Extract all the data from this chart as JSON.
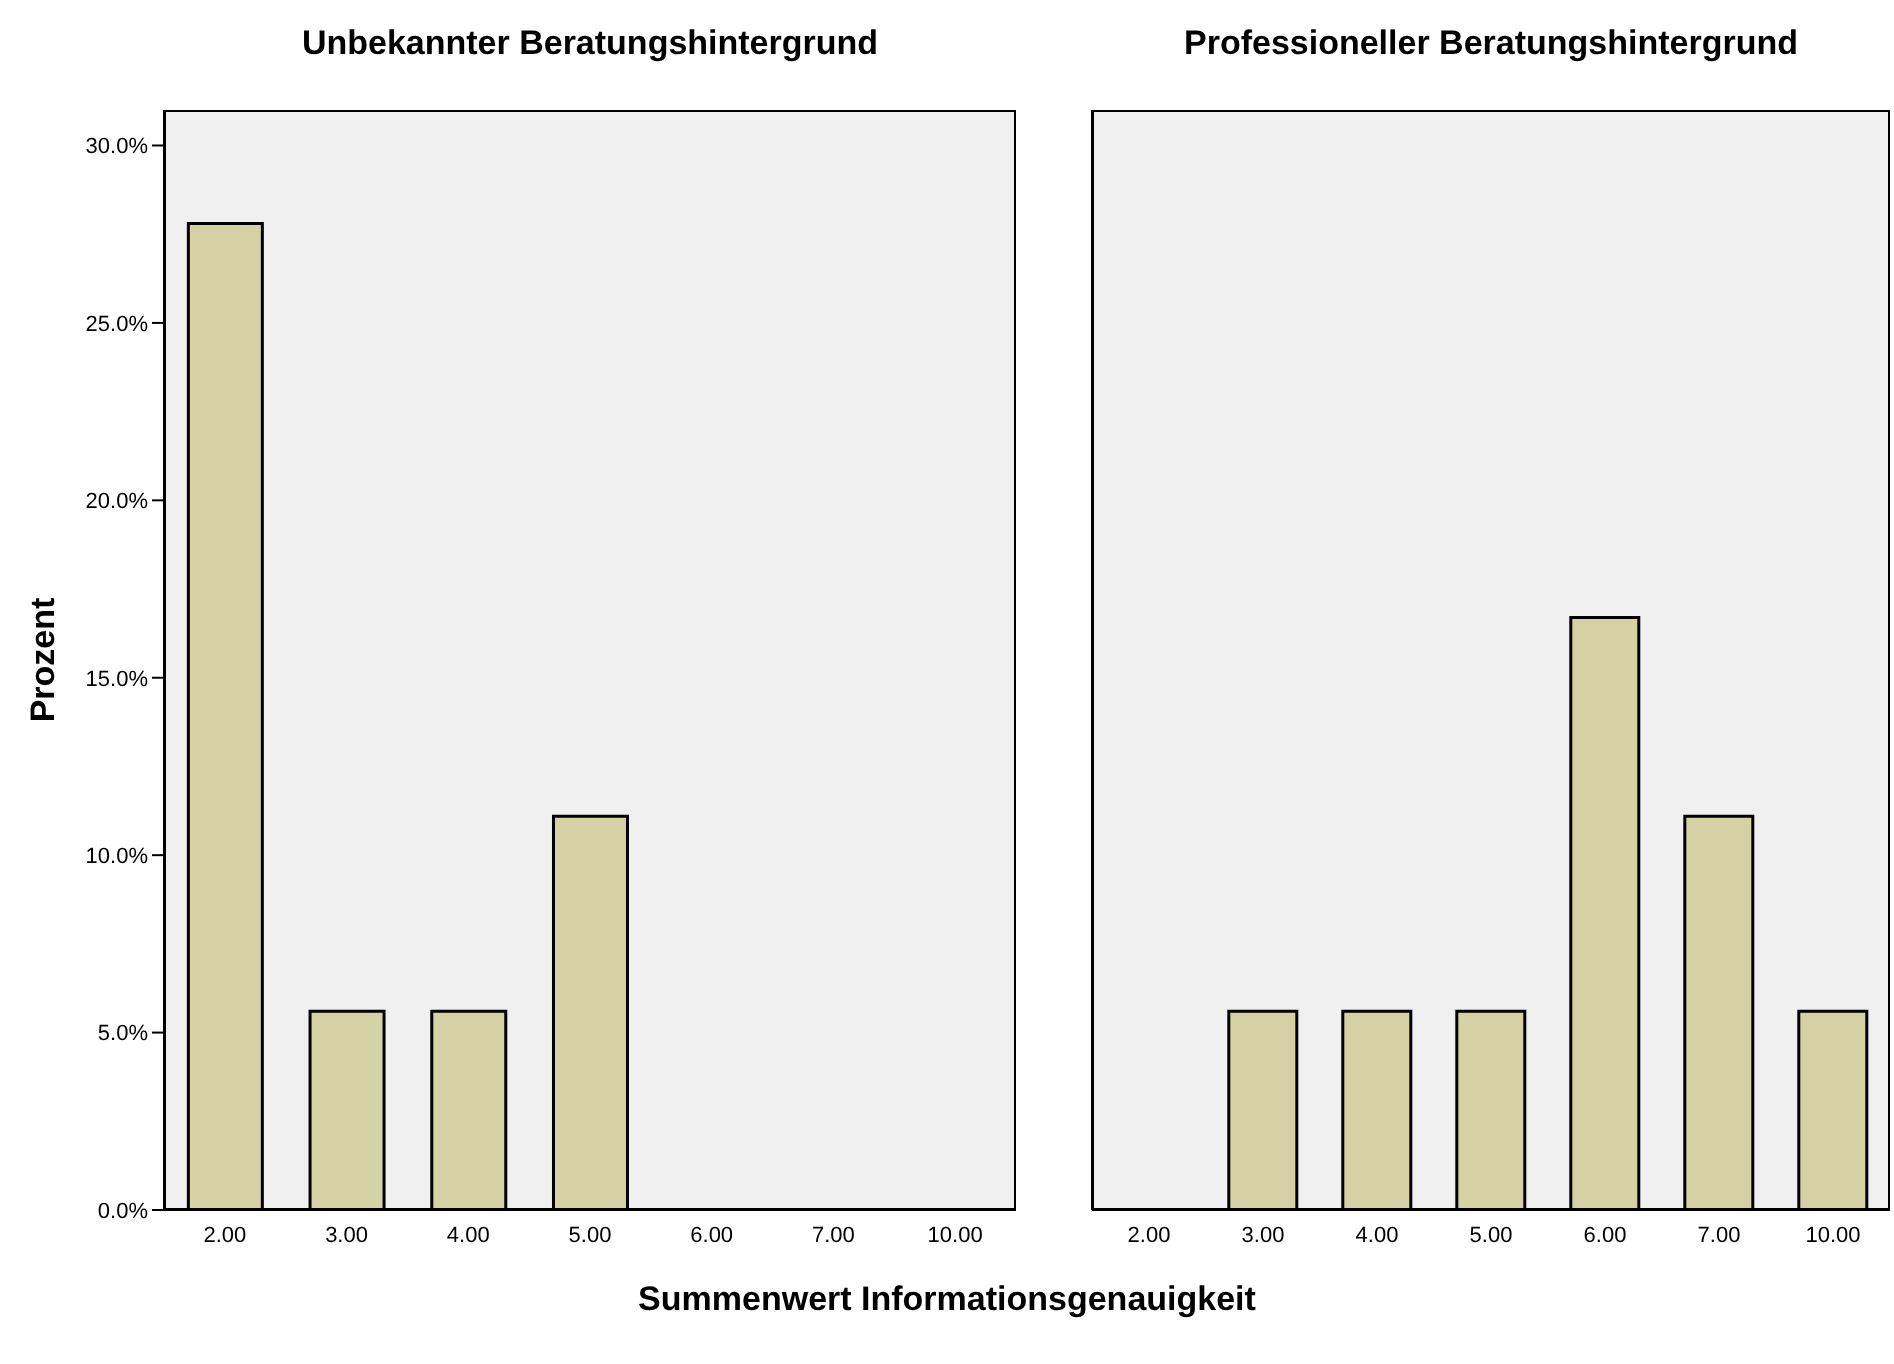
{
  "chart_data": [
    {
      "type": "bar",
      "title": "Unbekannter Beratungshintergrund",
      "xlabel": "Summenwert Informationsgenauigkeit",
      "ylabel": "Prozent",
      "categories": [
        "2.00",
        "3.00",
        "4.00",
        "5.00",
        "6.00",
        "7.00",
        "10.00"
      ],
      "series": [
        {
          "color": "#d4d1a4",
          "values": [
            27.8,
            5.6,
            5.6,
            11.1,
            0,
            0,
            0
          ]
        }
      ],
      "ylim": [
        0,
        31
      ],
      "yticks": [
        {
          "value": 0,
          "label": "0.0%"
        },
        {
          "value": 5,
          "label": "5.0%"
        },
        {
          "value": 10,
          "label": "10.0%"
        },
        {
          "value": 15,
          "label": "15.0%"
        },
        {
          "value": 20,
          "label": "20.0%"
        },
        {
          "value": 25,
          "label": "25.0%"
        },
        {
          "value": 30,
          "label": "30.0%"
        }
      ]
    },
    {
      "type": "bar",
      "title": "Professioneller Beratungshintergrund",
      "categories": [
        "2.00",
        "3.00",
        "4.00",
        "5.00",
        "6.00",
        "7.00",
        "10.00"
      ],
      "series": [
        {
          "color": "#d4d1a4",
          "values": [
            0,
            5.6,
            5.6,
            5.6,
            16.7,
            11.1,
            5.6
          ]
        }
      ],
      "ylim": [
        0,
        31
      ],
      "tick_labels": "x"
    }
  ]
}
